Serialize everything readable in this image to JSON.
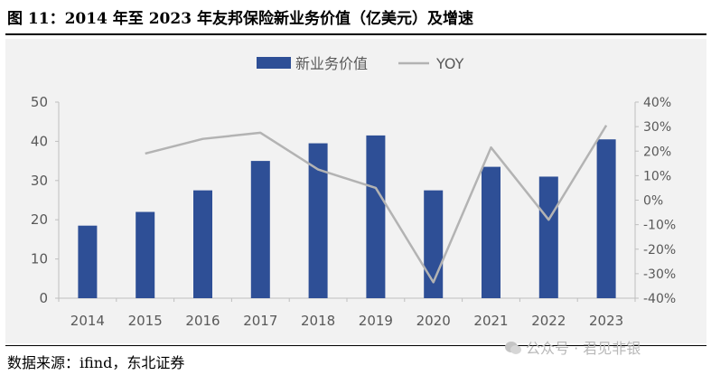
{
  "title": "图 11：2014 年至 2023 年友邦保险新业务价值（亿美元）及增速",
  "source": "数据来源：ifind，东北证券",
  "watermark": "公众号 · 君见非银",
  "colors": {
    "bar": "#2e4f96",
    "line": "#b3b3b3",
    "panel": "#f2f2f2",
    "axis": "#bfbfbf"
  },
  "chart_data": {
    "type": "bar",
    "categories": [
      "2014",
      "2015",
      "2016",
      "2017",
      "2018",
      "2019",
      "2020",
      "2021",
      "2022",
      "2023"
    ],
    "series": [
      {
        "name": "新业务价值",
        "type": "bar",
        "axis": "left",
        "values": [
          18.5,
          22.0,
          27.5,
          35.0,
          39.5,
          41.5,
          27.5,
          33.5,
          31.0,
          40.5
        ]
      },
      {
        "name": "YOY",
        "type": "line",
        "axis": "right",
        "values": [
          null,
          19.0,
          25.0,
          27.5,
          12.5,
          5.0,
          -33.5,
          21.5,
          -8.0,
          30.5
        ]
      }
    ],
    "ylim_left": [
      0,
      50
    ],
    "yticks_left": [
      "0",
      "10",
      "20",
      "30",
      "40",
      "50"
    ],
    "ylim_right": [
      -40,
      40
    ],
    "yticks_right": [
      "-40%",
      "-30%",
      "-20%",
      "-10%",
      "0%",
      "10%",
      "20%",
      "30%",
      "40%"
    ],
    "legend_position": "top-center",
    "grid": false
  }
}
